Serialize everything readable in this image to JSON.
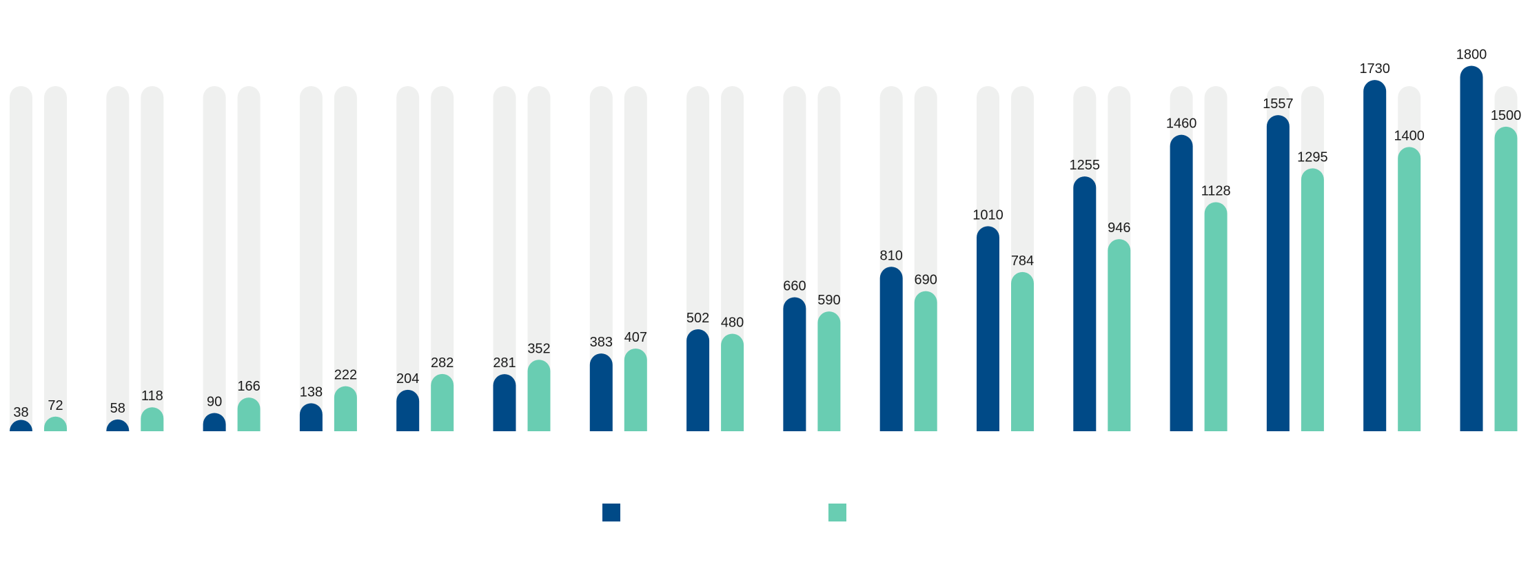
{
  "chart_data": {
    "type": "bar",
    "title": "",
    "xlabel": "",
    "ylabel": "",
    "ylim": [
      0,
      1900
    ],
    "grid": false,
    "legend_position": "bottom-center",
    "categories": [
      "",
      "",
      "",
      "",
      "",
      "",
      "",
      "",
      "",
      "",
      "",
      "",
      "",
      "",
      "",
      ""
    ],
    "series": [
      {
        "name": "",
        "color": "#004a87",
        "values": [
          38,
          58,
          90,
          138,
          204,
          281,
          383,
          502,
          660,
          810,
          1010,
          1255,
          1460,
          1557,
          1730,
          1800
        ]
      },
      {
        "name": "",
        "color": "#69cdb2",
        "values": [
          72,
          118,
          166,
          222,
          282,
          352,
          407,
          480,
          590,
          690,
          784,
          946,
          1128,
          1295,
          1400,
          1500
        ]
      }
    ],
    "track_color": "#eff0ef",
    "track_max": 1700
  }
}
